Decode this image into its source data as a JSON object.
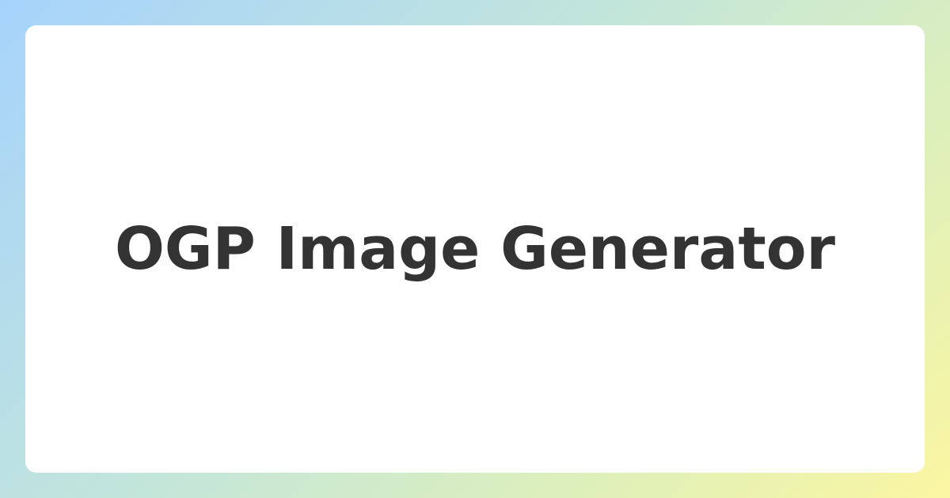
{
  "card": {
    "title": "OGP Image Generator"
  },
  "colors": {
    "background_gradient": [
      "#a6d3fc",
      "#c4e6d9",
      "#dff0b9",
      "#fbf6a2"
    ],
    "card_background": "#ffffff",
    "title_text": "#333333"
  }
}
